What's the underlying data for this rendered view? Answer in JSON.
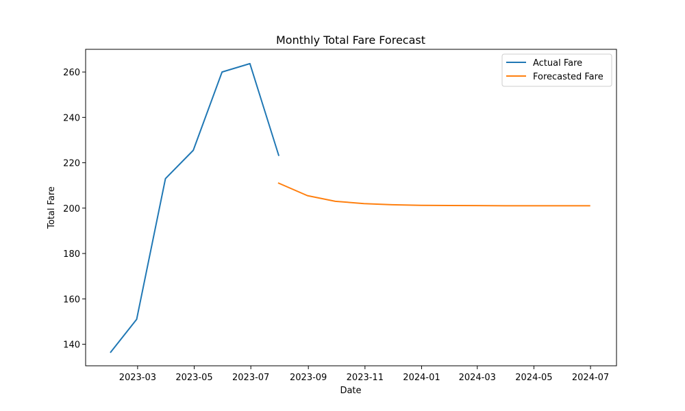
{
  "chart_data": {
    "type": "line",
    "title": "Monthly Total Fare Forecast",
    "xlabel": "Date",
    "ylabel": "Total Fare",
    "xlim": [
      "2023-01-04",
      "2024-07-29"
    ],
    "ylim": [
      130.5,
      270
    ],
    "x_ticks": [
      "2023-03-01",
      "2023-05-01",
      "2023-07-01",
      "2023-09-01",
      "2023-11-01",
      "2024-01-01",
      "2024-03-01",
      "2024-05-01",
      "2024-07-01"
    ],
    "x_tick_labels": [
      "2023-03",
      "2023-05",
      "2023-07",
      "2023-09",
      "2023-11",
      "2024-01",
      "2024-03",
      "2024-05",
      "2024-07"
    ],
    "y_ticks": [
      140,
      160,
      180,
      200,
      220,
      240,
      260
    ],
    "y_tick_labels": [
      "140",
      "160",
      "180",
      "200",
      "220",
      "240",
      "260"
    ],
    "grid": false,
    "legend_position": "top-right",
    "series": [
      {
        "name": "Actual Fare",
        "color": "#1f77b4",
        "x": [
          "2023-01-31",
          "2023-02-28",
          "2023-03-31",
          "2023-04-30",
          "2023-05-31",
          "2023-06-30",
          "2023-07-31"
        ],
        "y": [
          136.5,
          151.0,
          213.0,
          225.5,
          260.0,
          263.7,
          223.3
        ]
      },
      {
        "name": "Forecasted Fare",
        "color": "#ff7f0e",
        "x": [
          "2023-07-31",
          "2023-08-31",
          "2023-09-30",
          "2023-10-31",
          "2023-11-30",
          "2023-12-31",
          "2024-01-31",
          "2024-02-29",
          "2024-03-31",
          "2024-04-30",
          "2024-05-31",
          "2024-06-30"
        ],
        "y": [
          211.0,
          205.5,
          203.0,
          202.0,
          201.5,
          201.25,
          201.15,
          201.1,
          201.05,
          201.05,
          201.05,
          201.05
        ]
      }
    ]
  }
}
